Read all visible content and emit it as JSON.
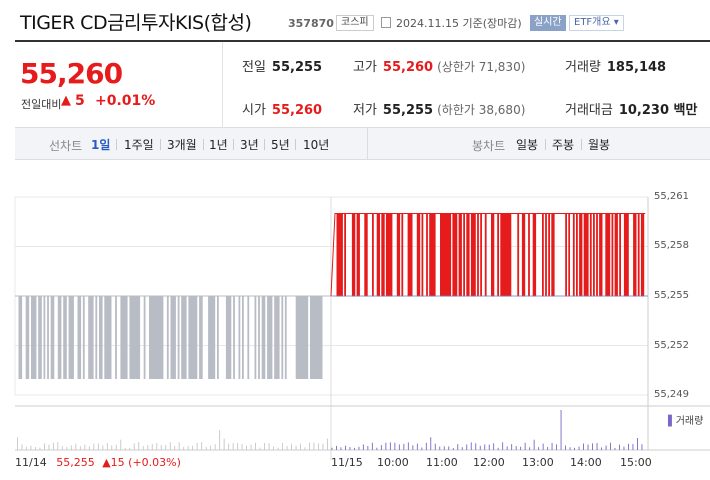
{
  "header": {
    "title": "TIGER CD금리투자KIS(합성)",
    "code": "357870",
    "market_badge": "코스피",
    "date": "2024.11.15 기준(장마감)",
    "live_badge": "실시간",
    "etf_link": "ETF개요"
  },
  "price": {
    "current": "55,260",
    "change_label": "전일대비",
    "change_arrow": "▲",
    "change_value": "5",
    "change_rate": "+0.01%",
    "color_up": "#e61b1b"
  },
  "stats": {
    "prev_close": {
      "label": "전일",
      "value": "55,255"
    },
    "high": {
      "label": "고가",
      "value": "55,260",
      "sub": "(상한가 71,830)"
    },
    "volume": {
      "label": "거래량",
      "value": "185,148"
    },
    "open": {
      "label": "시가",
      "value": "55,260"
    },
    "low": {
      "label": "저가",
      "value": "55,255",
      "sub": "(하한가 38,680)"
    },
    "amount": {
      "label": "거래대금",
      "value": "10,230 백만"
    }
  },
  "tabs": {
    "line_label": "선차트",
    "line_tabs": [
      "1일",
      "1주일",
      "3개월",
      "1년",
      "3년",
      "5년",
      "10년"
    ],
    "active": "1일",
    "candle_label": "봉차트",
    "candle_tabs": [
      "일봉",
      "주봉",
      "월봉"
    ]
  },
  "chart_data": {
    "type": "line",
    "y_ticks": [
      "55,261",
      "55,258",
      "55,255",
      "55,252",
      "55,249"
    ],
    "ylim": [
      55249,
      55261
    ],
    "x_ticks": [
      "11/15",
      "10:00",
      "11:00",
      "12:00",
      "13:00",
      "14:00",
      "15:00"
    ],
    "prev_day": {
      "date": "11/14",
      "close": "55,255",
      "arrow": "▲",
      "change": "15",
      "rate": "(+0.03%)"
    },
    "prev_series_range": [
      55250,
      55255
    ],
    "today_series_range": [
      55255,
      55260
    ],
    "volume_legend": "거래량",
    "colors": {
      "prev": "#b8bcc4",
      "today": "#e61b1b",
      "volume": "#7b67c7"
    }
  }
}
